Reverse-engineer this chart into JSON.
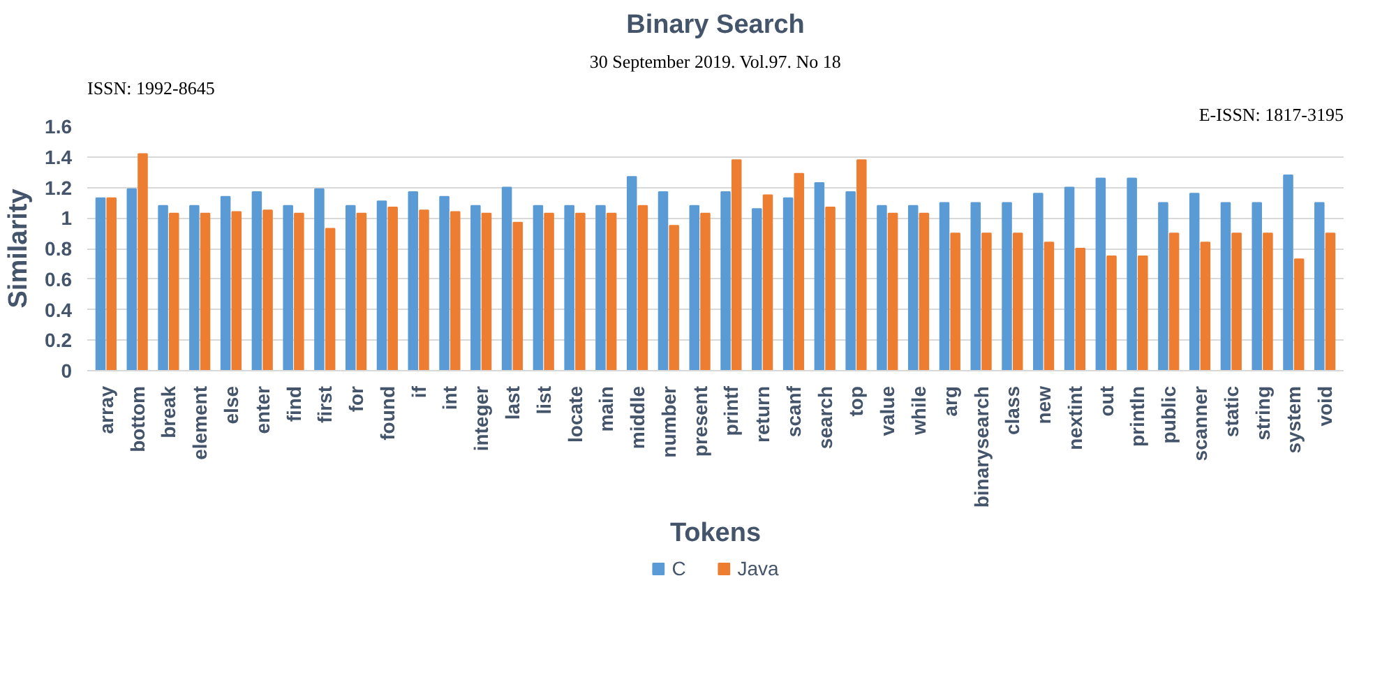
{
  "chart_data": {
    "type": "bar",
    "title": "Binary Search",
    "xlabel": "Tokens",
    "ylabel": "Similarity",
    "annotations": [
      "30 September 2019. Vol.97. No 18",
      "ISSN: 1992-8645",
      "E-ISSN: 1817-3195"
    ],
    "categories": [
      "array",
      "bottom",
      "break",
      "element",
      "else",
      "enter",
      "find",
      "first",
      "for",
      "found",
      "if",
      "int",
      "integer",
      "last",
      "list",
      "locate",
      "main",
      "middle",
      "number",
      "present",
      "printf",
      "return",
      "scanf",
      "search",
      "top",
      "value",
      "while",
      "arg",
      "binarysearch",
      "class",
      "new",
      "nextint",
      "out",
      "println",
      "public",
      "scanner",
      "static",
      "string",
      "system",
      "void"
    ],
    "series": [
      {
        "name": "C",
        "color": "#5b9bd5",
        "values": [
          1.13,
          1.19,
          1.08,
          1.08,
          1.14,
          1.17,
          1.08,
          1.19,
          1.08,
          1.11,
          1.17,
          1.14,
          1.08,
          1.2,
          1.08,
          1.08,
          1.08,
          1.27,
          1.17,
          1.08,
          1.17,
          1.06,
          1.13,
          1.23,
          1.17,
          1.08,
          1.08,
          1.1,
          1.1,
          1.1,
          1.16,
          1.2,
          1.26,
          1.26,
          1.1,
          1.16,
          1.1,
          1.1,
          1.28,
          1.1
        ]
      },
      {
        "name": "Java",
        "color": "#ed7d31",
        "values": [
          1.13,
          1.42,
          1.03,
          1.03,
          1.04,
          1.05,
          1.03,
          0.93,
          1.03,
          1.07,
          1.05,
          1.04,
          1.03,
          0.97,
          1.03,
          1.03,
          1.03,
          1.08,
          0.95,
          1.03,
          1.38,
          1.15,
          1.29,
          1.07,
          1.38,
          1.03,
          1.03,
          0.9,
          0.9,
          0.9,
          0.84,
          0.8,
          0.75,
          0.75,
          0.9,
          0.84,
          0.9,
          0.9,
          0.73,
          0.9
        ]
      }
    ],
    "ylim": [
      0,
      1.6
    ],
    "yticks": [
      0,
      0.2,
      0.4,
      0.6,
      0.8,
      1,
      1.2,
      1.4,
      1.6
    ],
    "grid": "y",
    "legend": "bottom"
  }
}
